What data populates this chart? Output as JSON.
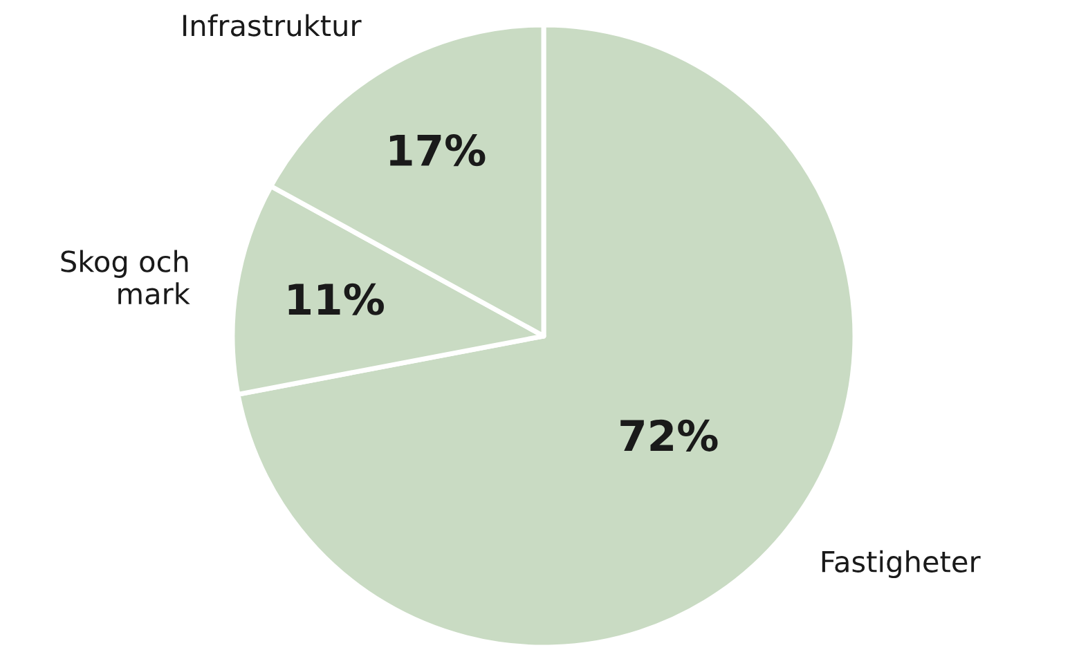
{
  "chart_data": {
    "type": "pie",
    "categories": [
      "Fastigheter",
      "Skog och\nmark",
      "Infrastruktur"
    ],
    "values": [
      72,
      11,
      17
    ],
    "value_labels": [
      "72%",
      "11%",
      "17%"
    ],
    "colors": [
      "#c9dbc3",
      "#c9dbc3",
      "#c9dbc3"
    ],
    "legend": false
  }
}
